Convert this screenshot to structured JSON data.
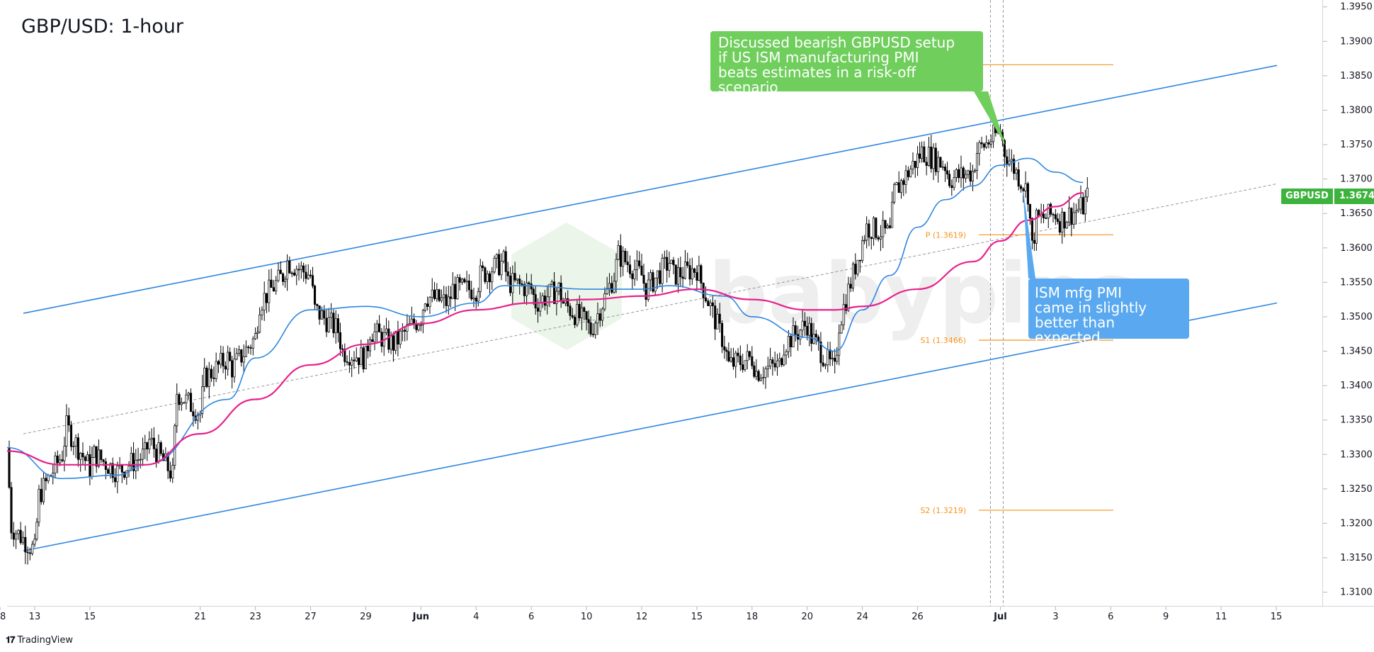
{
  "title": "GBP/USD: 1-hour",
  "watermark": "babypips",
  "footer_brand": "TradingView",
  "colors": {
    "up_candle": "#ffffff",
    "down_candle": "#000000",
    "channel": "#2f86e0",
    "ma_fast": "#2f86e0",
    "ma_slow": "#e8208c",
    "pivot": "#f7931a",
    "annotation_green": "#6fce5c",
    "annotation_blue": "#5aa9f0",
    "price_tag": "#3db33d"
  },
  "notes": {
    "green": "Discussed bearish GBPUSD setup\nif US ISM manufacturing PMI\nbeats estimates in a risk-off scenario",
    "blue": "ISM mfg PMI\ncame in slightly\nbetter than expected"
  },
  "price_tag": {
    "symbol": "GBPUSD",
    "value": "1.3674"
  },
  "chart_data": {
    "type": "candlestick",
    "title": "GBP/USD: 1-hour",
    "symbol": "GBPUSD",
    "timeframe": "1-hour",
    "ylim": [
      1.308,
      1.396
    ],
    "y_ticks": [
      "1.3100",
      "1.3150",
      "1.3200",
      "1.3250",
      "1.3300",
      "1.3350",
      "1.3400",
      "1.3450",
      "1.3500",
      "1.3550",
      "1.3600",
      "1.3650",
      "1.3700",
      "1.3750",
      "1.3800",
      "1.3850",
      "1.3900",
      "1.3950"
    ],
    "x_ticks": [
      "13",
      "15",
      "18",
      "21",
      "23",
      "27",
      "29",
      "Jun",
      "4",
      "6",
      "10",
      "12",
      "15",
      "18",
      "20",
      "24",
      "26",
      "Jul",
      "3",
      "6",
      "9",
      "11",
      "15"
    ],
    "last_price": 1.3674,
    "close_path": [
      [
        "May 12",
        1.331
      ],
      [
        "May 12",
        1.3195
      ],
      [
        "May 13",
        1.316
      ],
      [
        "May 13",
        1.324
      ],
      [
        "May 14",
        1.33
      ],
      [
        "May 14",
        1.334
      ],
      [
        "May 15",
        1.328
      ],
      [
        "May 15",
        1.33
      ],
      [
        "May 16",
        1.3275
      ],
      [
        "May 19",
        1.33
      ],
      [
        "May 19",
        1.332
      ],
      [
        "May 20",
        1.327
      ],
      [
        "May 20",
        1.339
      ],
      [
        "May 21",
        1.336
      ],
      [
        "May 21",
        1.341
      ],
      [
        "May 22",
        1.344
      ],
      [
        "May 22",
        1.3425
      ],
      [
        "May 23",
        1.347
      ],
      [
        "May 23",
        1.352
      ],
      [
        "May 26",
        1.356
      ],
      [
        "May 26",
        1.358
      ],
      [
        "May 27",
        1.356
      ],
      [
        "May 27",
        1.351
      ],
      [
        "May 28",
        1.348
      ],
      [
        "May 28",
        1.345
      ],
      [
        "May 29",
        1.344
      ],
      [
        "May 29",
        1.348
      ],
      [
        "May 30",
        1.346
      ],
      [
        "Jun 2",
        1.35
      ],
      [
        "Jun 2",
        1.353
      ],
      [
        "Jun 3",
        1.352
      ],
      [
        "Jun 3",
        1.354
      ],
      [
        "Jun 4",
        1.354
      ],
      [
        "Jun 4",
        1.356
      ],
      [
        "Jun 5",
        1.358
      ],
      [
        "Jun 5",
        1.355
      ],
      [
        "Jun 6",
        1.354
      ],
      [
        "Jun 6",
        1.352
      ],
      [
        "Jun 9",
        1.354
      ],
      [
        "Jun 9",
        1.352
      ],
      [
        "Jun 10",
        1.349
      ],
      [
        "Jun 10",
        1.348
      ],
      [
        "Jun 11",
        1.356
      ],
      [
        "Jun 11",
        1.359
      ],
      [
        "Jun 12",
        1.356
      ],
      [
        "Jun 12",
        1.354
      ],
      [
        "Jun 13",
        1.358
      ],
      [
        "Jun 13",
        1.356
      ],
      [
        "Jun 16",
        1.357
      ],
      [
        "Jun 16",
        1.355
      ],
      [
        "Jun 17",
        1.346
      ],
      [
        "Jun 17",
        1.343
      ],
      [
        "Jun 18",
        1.344
      ],
      [
        "Jun 18",
        1.342
      ],
      [
        "Jun 19",
        1.343
      ],
      [
        "Jun 19",
        1.346
      ],
      [
        "Jun 20",
        1.349
      ],
      [
        "Jun 20",
        1.347
      ],
      [
        "Jun 23",
        1.342
      ],
      [
        "Jun 23",
        1.349
      ],
      [
        "Jun 24",
        1.361
      ],
      [
        "Jun 24",
        1.363
      ],
      [
        "Jun 25",
        1.362
      ],
      [
        "Jun 25",
        1.368
      ],
      [
        "Jun 26",
        1.373
      ],
      [
        "Jun 26",
        1.374
      ],
      [
        "Jun 27",
        1.372
      ],
      [
        "Jun 27",
        1.37
      ],
      [
        "Jun 30",
        1.371
      ],
      [
        "Jun 30",
        1.374
      ],
      [
        "Jul 1",
        1.377
      ],
      [
        "Jul 1",
        1.374
      ],
      [
        "Jul 2",
        1.368
      ],
      [
        "Jul 2",
        1.36
      ],
      [
        "Jul 2",
        1.364
      ],
      [
        "Jul 3",
        1.365
      ],
      [
        "Jul 3",
        1.364
      ],
      [
        "Jul 4",
        1.366
      ],
      [
        "Jul 4",
        1.3674
      ]
    ],
    "moving_averages": [
      {
        "color": "#2f86e0",
        "points": [
          [
            "May 12",
            1.331
          ],
          [
            "May 14",
            1.3265
          ],
          [
            "May 16",
            1.327
          ],
          [
            "May 19",
            1.3285
          ],
          [
            "May 22",
            1.338
          ],
          [
            "May 23",
            1.344
          ],
          [
            "May 27",
            1.351
          ],
          [
            "May 29",
            1.3515
          ],
          [
            "Jun 2",
            1.35
          ],
          [
            "Jun 4",
            1.352
          ],
          [
            "Jun 5",
            1.3545
          ],
          [
            "Jun 6",
            1.3545
          ],
          [
            "Jun 10",
            1.354
          ],
          [
            "Jun 12",
            1.354
          ],
          [
            "Jun 13",
            1.3545
          ],
          [
            "Jun 17",
            1.353
          ],
          [
            "Jun 18",
            1.35
          ],
          [
            "Jun 20",
            1.347
          ],
          [
            "Jun 23",
            1.345
          ],
          [
            "Jun 24",
            1.351
          ],
          [
            "Jun 25",
            1.356
          ],
          [
            "Jun 26",
            1.363
          ],
          [
            "Jun 27",
            1.367
          ],
          [
            "Jun 30",
            1.369
          ],
          [
            "Jul 1",
            1.372
          ],
          [
            "Jul 2",
            1.373
          ],
          [
            "Jul 3",
            1.371
          ],
          [
            "Jul 4",
            1.3695
          ]
        ]
      },
      {
        "color": "#e8208c",
        "points": [
          [
            "May 12",
            1.3305
          ],
          [
            "May 14",
            1.3285
          ],
          [
            "May 16",
            1.3285
          ],
          [
            "May 19",
            1.3285
          ],
          [
            "May 21",
            1.333
          ],
          [
            "May 23",
            1.338
          ],
          [
            "May 27",
            1.343
          ],
          [
            "May 29",
            1.346
          ],
          [
            "Jun 2",
            1.349
          ],
          [
            "Jun 4",
            1.351
          ],
          [
            "Jun 6",
            1.352
          ],
          [
            "Jun 10",
            1.3525
          ],
          [
            "Jun 12",
            1.353
          ],
          [
            "Jun 16",
            1.354
          ],
          [
            "Jun 18",
            1.3525
          ],
          [
            "Jun 20",
            1.351
          ],
          [
            "Jun 23",
            1.351
          ],
          [
            "Jun 24",
            1.3515
          ],
          [
            "Jun 26",
            1.354
          ],
          [
            "Jun 30",
            1.358
          ],
          [
            "Jul 1",
            1.361
          ],
          [
            "Jul 2",
            1.364
          ],
          [
            "Jul 3",
            1.366
          ],
          [
            "Jul 4",
            1.368
          ]
        ]
      }
    ],
    "channel": {
      "upper": [
        [
          "May 12",
          1.3505
        ],
        [
          "Jul 15",
          1.3865
        ]
      ],
      "lower": [
        [
          "May 12",
          1.316
        ],
        [
          "Jul 15",
          1.352
        ]
      ],
      "middle": [
        [
          "May 12",
          1.333
        ],
        [
          "Jul 15",
          1.3693
        ]
      ]
    },
    "pivot_levels": [
      {
        "label": "R1 (1.3866)",
        "value": 1.3866
      },
      {
        "label": "P (1.3619)",
        "value": 1.3619
      },
      {
        "label": "S1 (1.3466)",
        "value": 1.3466
      },
      {
        "label": "S2 (1.3219)",
        "value": 1.3219
      }
    ],
    "event_markers": [
      "Jul 1",
      "Jul 1"
    ]
  }
}
